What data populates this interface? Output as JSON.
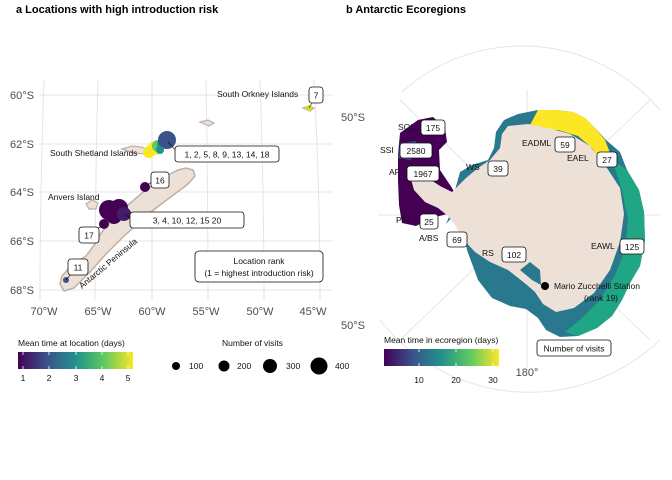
{
  "panel_a": {
    "title": "a Locations with high introduction risk",
    "lat_ticks": [
      "60°S",
      "62°S",
      "64°S",
      "66°S",
      "68°S"
    ],
    "lon_ticks": [
      "70°W",
      "65°W",
      "60°W",
      "55°W",
      "50°W",
      "45°W"
    ],
    "place_labels": {
      "south_orkney": "South Orkney Islands",
      "south_shetland": "South Shetland Islands",
      "anvers": "Anvers Island",
      "peninsula": "Antarctic Peninsula"
    },
    "rank_labels": [
      "7",
      "1, 2, 5, 8, 9, 13, 14, 18",
      "16",
      "3, 4, 10, 12, 15 20",
      "17",
      "11"
    ],
    "rank_box": {
      "line1": "Location rank",
      "line2": "(1 = highest introduction risk)"
    },
    "colour_legend": {
      "title": "Mean time at location (days)",
      "ticks": [
        "1",
        "2",
        "3",
        "4",
        "5"
      ]
    },
    "size_legend": {
      "title": "Number of visits",
      "values": [
        "100",
        "200",
        "300",
        "400"
      ]
    }
  },
  "panel_b": {
    "title": "b Antarctic Ecoregions",
    "lat_labels": [
      "50°S",
      "50°S"
    ],
    "lon_label": "180°",
    "ecoregions": [
      {
        "code": "SOI",
        "visits": "175"
      },
      {
        "code": "SSI",
        "visits": "2580"
      },
      {
        "code": "AP",
        "visits": "1967"
      },
      {
        "code": "WS",
        "visits": "39"
      },
      {
        "code": "EADML",
        "visits": "59"
      },
      {
        "code": "EAEL",
        "visits": "27"
      },
      {
        "code": "PFI",
        "visits": "25"
      },
      {
        "code": "A/BS",
        "visits": "69"
      },
      {
        "code": "RS",
        "visits": "102"
      },
      {
        "code": "EAWL",
        "visits": "125"
      }
    ],
    "station": {
      "name": "Mario Zucchelli Station",
      "rank": "(rank 19)"
    },
    "visits_box": "Number of visits",
    "colour_legend": {
      "title": "Mean time in ecoregion (days)",
      "ticks": [
        "10",
        "20",
        "30"
      ]
    }
  },
  "colors": {
    "viridis": [
      "#440154",
      "#3b528b",
      "#21918c",
      "#5ec962",
      "#fde725"
    ],
    "land": "#ede0d6",
    "land_outline": "#bfb0a5",
    "grid": "#e5e5e5"
  }
}
